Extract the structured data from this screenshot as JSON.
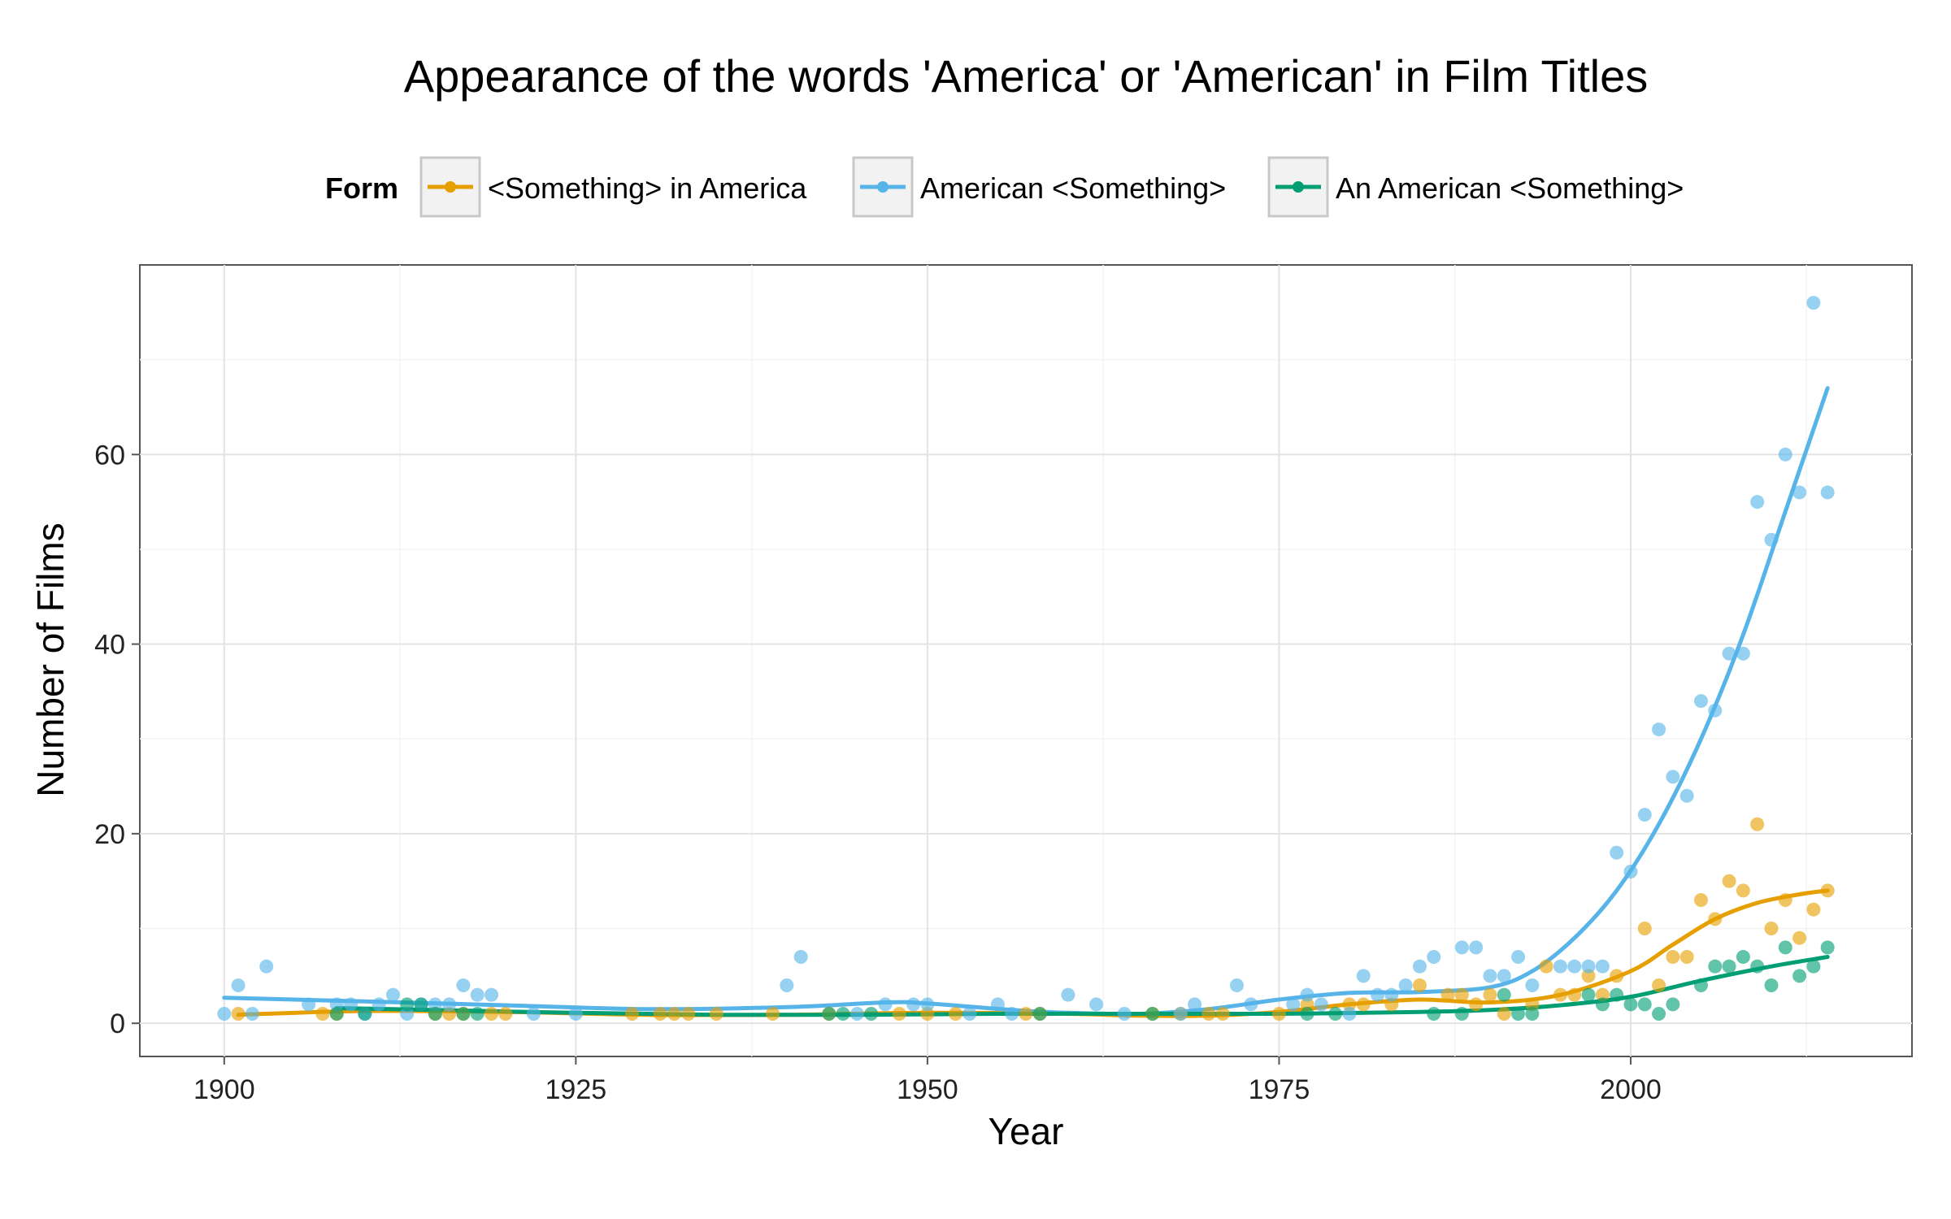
{
  "chart_data": {
    "type": "scatter",
    "title": "Appearance of the words 'America' or 'American' in Film Titles",
    "xlabel": "Year",
    "ylabel": "Number of Films",
    "xlim": [
      1894,
      2020
    ],
    "ylim": [
      -3.5,
      80
    ],
    "x_ticks": [
      "1900",
      "1925",
      "1950",
      "1975",
      "2000"
    ],
    "y_ticks": [
      "0",
      "20",
      "40",
      "60"
    ],
    "grid": true,
    "legend": {
      "title": "Form",
      "placement": "top",
      "entries": [
        "<Something> in America",
        "American <Something>",
        "An American <Something>"
      ]
    },
    "series": [
      {
        "name": "<Something> in America",
        "color": "#E69F00",
        "points": [
          [
            1901,
            1
          ],
          [
            1907,
            1
          ],
          [
            1908,
            1
          ],
          [
            1915,
            1
          ],
          [
            1916,
            1
          ],
          [
            1917,
            1
          ],
          [
            1919,
            1
          ],
          [
            1920,
            1
          ],
          [
            1929,
            1
          ],
          [
            1931,
            1
          ],
          [
            1932,
            1
          ],
          [
            1933,
            1
          ],
          [
            1935,
            1
          ],
          [
            1939,
            1
          ],
          [
            1943,
            1
          ],
          [
            1948,
            1
          ],
          [
            1950,
            1
          ],
          [
            1952,
            1
          ],
          [
            1957,
            1
          ],
          [
            1958,
            1
          ],
          [
            1966,
            1
          ],
          [
            1968,
            1
          ],
          [
            1970,
            1
          ],
          [
            1971,
            1
          ],
          [
            1975,
            1
          ],
          [
            1977,
            2
          ],
          [
            1980,
            2
          ],
          [
            1981,
            2
          ],
          [
            1983,
            2
          ],
          [
            1985,
            4
          ],
          [
            1987,
            3
          ],
          [
            1988,
            3
          ],
          [
            1989,
            2
          ],
          [
            1990,
            3
          ],
          [
            1991,
            1
          ],
          [
            1993,
            2
          ],
          [
            1994,
            6
          ],
          [
            1995,
            3
          ],
          [
            1996,
            3
          ],
          [
            1997,
            5
          ],
          [
            1998,
            3
          ],
          [
            1999,
            5
          ],
          [
            2001,
            10
          ],
          [
            2002,
            4
          ],
          [
            2003,
            7
          ],
          [
            2004,
            7
          ],
          [
            2005,
            13
          ],
          [
            2006,
            11
          ],
          [
            2007,
            15
          ],
          [
            2008,
            14
          ],
          [
            2009,
            21
          ],
          [
            2010,
            10
          ],
          [
            2011,
            13
          ],
          [
            2012,
            9
          ],
          [
            2013,
            12
          ],
          [
            2014,
            14
          ]
        ],
        "trend": [
          [
            1901,
            0.9
          ],
          [
            1910,
            1.3
          ],
          [
            1920,
            1.2
          ],
          [
            1930,
            0.9
          ],
          [
            1940,
            0.9
          ],
          [
            1950,
            1.1
          ],
          [
            1960,
            1.0
          ],
          [
            1965,
            0.8
          ],
          [
            1970,
            0.8
          ],
          [
            1975,
            1.2
          ],
          [
            1980,
            2.0
          ],
          [
            1985,
            2.5
          ],
          [
            1990,
            2.2
          ],
          [
            1995,
            3.0
          ],
          [
            2000,
            5.5
          ],
          [
            2003,
            8.3
          ],
          [
            2006,
            11.0
          ],
          [
            2009,
            12.7
          ],
          [
            2012,
            13.6
          ],
          [
            2014,
            14.0
          ]
        ]
      },
      {
        "name": "American <Something>",
        "color": "#56B4E9",
        "points": [
          [
            1900,
            1
          ],
          [
            1901,
            4
          ],
          [
            1902,
            1
          ],
          [
            1903,
            6
          ],
          [
            1906,
            2
          ],
          [
            1908,
            2
          ],
          [
            1909,
            2
          ],
          [
            1910,
            1
          ],
          [
            1911,
            2
          ],
          [
            1912,
            3
          ],
          [
            1913,
            1
          ],
          [
            1914,
            2
          ],
          [
            1915,
            2
          ],
          [
            1916,
            2
          ],
          [
            1917,
            4
          ],
          [
            1918,
            3
          ],
          [
            1919,
            3
          ],
          [
            1922,
            1
          ],
          [
            1925,
            1
          ],
          [
            1940,
            4
          ],
          [
            1941,
            7
          ],
          [
            1945,
            1
          ],
          [
            1947,
            2
          ],
          [
            1949,
            2
          ],
          [
            1950,
            2
          ],
          [
            1953,
            1
          ],
          [
            1955,
            2
          ],
          [
            1956,
            1
          ],
          [
            1960,
            3
          ],
          [
            1962,
            2
          ],
          [
            1964,
            1
          ],
          [
            1968,
            1
          ],
          [
            1969,
            2
          ],
          [
            1972,
            4
          ],
          [
            1973,
            2
          ],
          [
            1976,
            2
          ],
          [
            1977,
            3
          ],
          [
            1978,
            2
          ],
          [
            1980,
            1
          ],
          [
            1981,
            5
          ],
          [
            1982,
            3
          ],
          [
            1983,
            3
          ],
          [
            1984,
            4
          ],
          [
            1985,
            6
          ],
          [
            1986,
            7
          ],
          [
            1988,
            8
          ],
          [
            1989,
            8
          ],
          [
            1990,
            5
          ],
          [
            1991,
            5
          ],
          [
            1992,
            7
          ],
          [
            1993,
            4
          ],
          [
            1995,
            6
          ],
          [
            1996,
            6
          ],
          [
            1997,
            6
          ],
          [
            1998,
            6
          ],
          [
            1999,
            18
          ],
          [
            2000,
            16
          ],
          [
            2001,
            22
          ],
          [
            2002,
            31
          ],
          [
            2003,
            26
          ],
          [
            2004,
            24
          ],
          [
            2005,
            34
          ],
          [
            2006,
            33
          ],
          [
            2007,
            39
          ],
          [
            2008,
            39
          ],
          [
            2009,
            55
          ],
          [
            2010,
            51
          ],
          [
            2011,
            60
          ],
          [
            2012,
            56
          ],
          [
            2013,
            76
          ],
          [
            2014,
            56
          ]
        ],
        "trend": [
          [
            1900,
            2.7
          ],
          [
            1910,
            2.3
          ],
          [
            1920,
            1.9
          ],
          [
            1930,
            1.5
          ],
          [
            1940,
            1.7
          ],
          [
            1947,
            2.2
          ],
          [
            1950,
            2.1
          ],
          [
            1956,
            1.4
          ],
          [
            1960,
            1.1
          ],
          [
            1965,
            1.0
          ],
          [
            1970,
            1.5
          ],
          [
            1975,
            2.5
          ],
          [
            1980,
            3.2
          ],
          [
            1985,
            3.3
          ],
          [
            1990,
            3.8
          ],
          [
            1993,
            5.5
          ],
          [
            1996,
            9.0
          ],
          [
            1999,
            14.0
          ],
          [
            2002,
            21.0
          ],
          [
            2005,
            30.0
          ],
          [
            2008,
            41.0
          ],
          [
            2011,
            54.0
          ],
          [
            2014,
            67.0
          ]
        ]
      },
      {
        "name": "An American <Something>",
        "color": "#009E73",
        "points": [
          [
            1908,
            1
          ],
          [
            1910,
            1
          ],
          [
            1913,
            2
          ],
          [
            1914,
            2
          ],
          [
            1915,
            1
          ],
          [
            1917,
            1
          ],
          [
            1918,
            1
          ],
          [
            1943,
            1
          ],
          [
            1944,
            1
          ],
          [
            1946,
            1
          ],
          [
            1958,
            1
          ],
          [
            1966,
            1
          ],
          [
            1977,
            1
          ],
          [
            1979,
            1
          ],
          [
            1986,
            1
          ],
          [
            1988,
            1
          ],
          [
            1991,
            3
          ],
          [
            1992,
            1
          ],
          [
            1993,
            1
          ],
          [
            1997,
            3
          ],
          [
            1998,
            2
          ],
          [
            1999,
            3
          ],
          [
            2000,
            2
          ],
          [
            2001,
            2
          ],
          [
            2002,
            1
          ],
          [
            2003,
            2
          ],
          [
            2005,
            4
          ],
          [
            2006,
            6
          ],
          [
            2007,
            6
          ],
          [
            2008,
            7
          ],
          [
            2009,
            6
          ],
          [
            2010,
            4
          ],
          [
            2011,
            8
          ],
          [
            2012,
            5
          ],
          [
            2013,
            6
          ],
          [
            2014,
            8
          ]
        ],
        "trend": [
          [
            1908,
            1.6
          ],
          [
            1915,
            1.4
          ],
          [
            1925,
            1.1
          ],
          [
            1935,
            0.9
          ],
          [
            1945,
            0.9
          ],
          [
            1955,
            1.0
          ],
          [
            1965,
            1.0
          ],
          [
            1975,
            1.0
          ],
          [
            1985,
            1.2
          ],
          [
            1990,
            1.4
          ],
          [
            1995,
            1.9
          ],
          [
            2000,
            2.8
          ],
          [
            2005,
            4.5
          ],
          [
            2010,
            6.0
          ],
          [
            2014,
            7.0
          ]
        ]
      }
    ]
  }
}
